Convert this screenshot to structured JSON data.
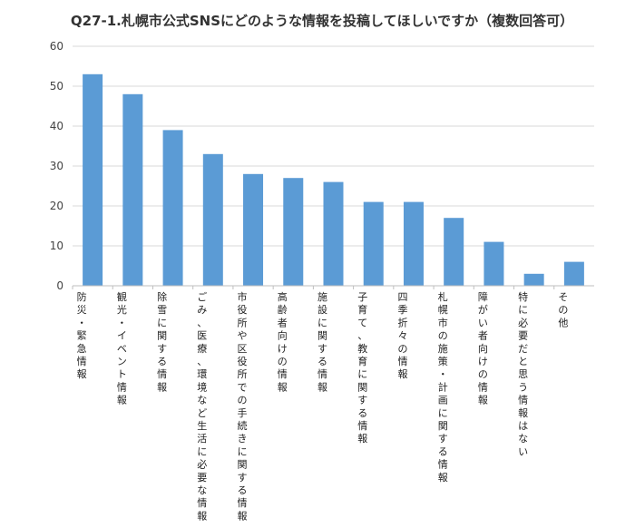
{
  "chart_data": {
    "type": "bar",
    "title": "Q27-1.札幌市公式SNSにどのような情報を投稿してほしいですか（複数回答可）",
    "categories": [
      "防災・緊急情報",
      "観光・イベント情報",
      "除雪に関する情報",
      "ごみ、医療、環境など生活に必要な情報",
      "市役所や区役所での手続きに関する情報",
      "高齢者向けの情報",
      "施設に関する情報",
      "子育て、教育に関する情報",
      "四季折々の情報",
      "札幌市の施策・計画に関する情報",
      "障がい者向けの情報",
      "特に必要だと思う情報はない",
      "その他"
    ],
    "values": [
      53,
      48,
      39,
      33,
      28,
      27,
      26,
      21,
      21,
      17,
      11,
      3,
      6
    ],
    "ylim": [
      0,
      60
    ],
    "yticks": [
      "0",
      "10",
      "20",
      "30",
      "40",
      "50",
      "60"
    ],
    "grid": true,
    "bar_color": "#5b9bd5",
    "xlabel": "",
    "ylabel": ""
  }
}
